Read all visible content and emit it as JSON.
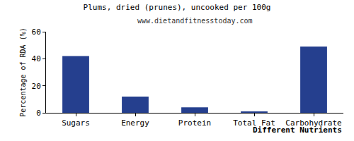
{
  "chart_data": {
    "type": "bar",
    "title": "Plums, dried (prunes), uncooked per 100g",
    "subtitle": "www.dietandfitnesstoday.com",
    "x_label": "Different Nutrients",
    "y_label": "Percentage of RDA (%)",
    "categories": [
      "Sugars",
      "Energy",
      "Protein",
      "Total Fat",
      "Carbohydrate"
    ],
    "values": [
      42,
      12,
      4,
      1,
      49
    ],
    "color": "#253f8e",
    "ylim": [
      0,
      60
    ],
    "yticks": [
      0,
      20,
      40,
      60
    ],
    "grid": false
  }
}
